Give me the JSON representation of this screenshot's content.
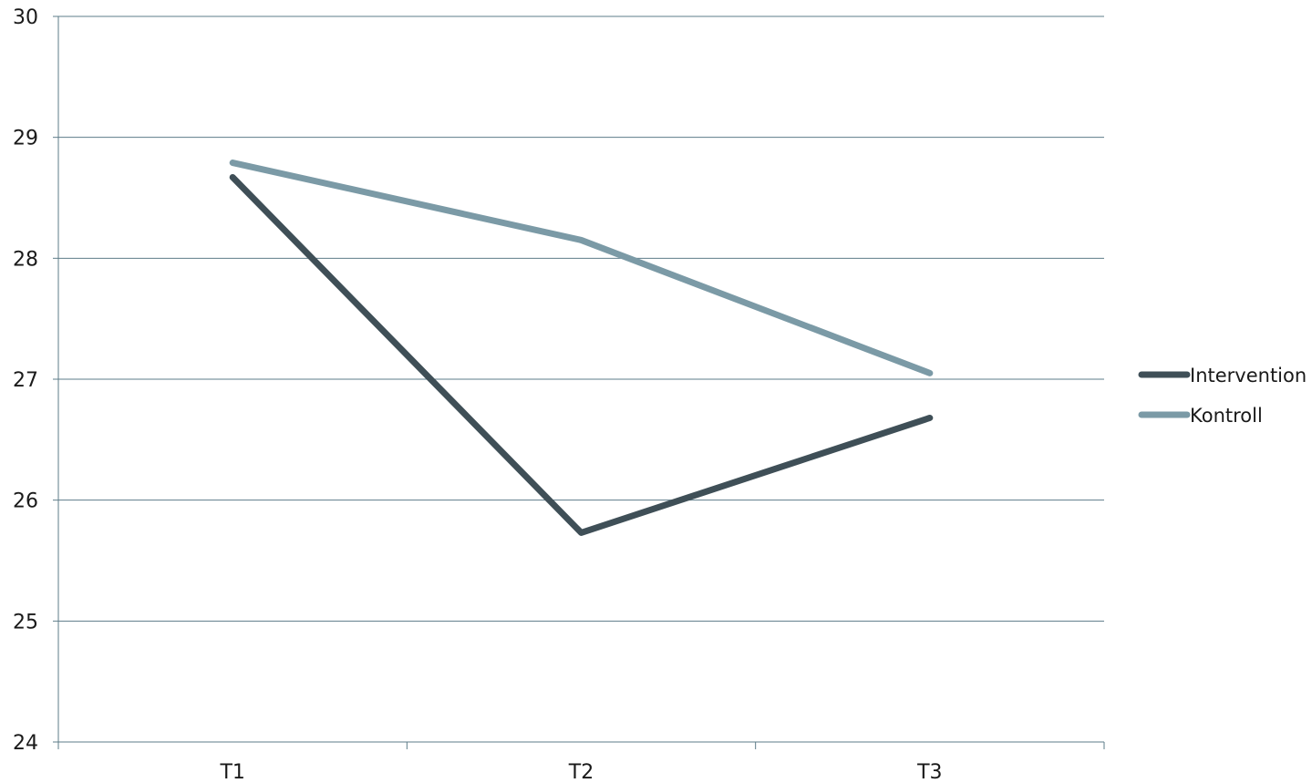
{
  "chart_data": {
    "type": "line",
    "categories": [
      "T1",
      "T2",
      "T3"
    ],
    "series": [
      {
        "name": "Intervention",
        "values": [
          28.67,
          25.73,
          26.68
        ],
        "color": "#3f4f57"
      },
      {
        "name": "Kontroll",
        "values": [
          28.79,
          28.15,
          27.05
        ],
        "color": "#7b9aa6"
      }
    ],
    "ylim": [
      24,
      30
    ],
    "yticks": [
      24,
      25,
      26,
      27,
      28,
      29,
      30
    ],
    "grid": true,
    "legend": "right",
    "xlabel": "",
    "ylabel": "",
    "title": ""
  }
}
